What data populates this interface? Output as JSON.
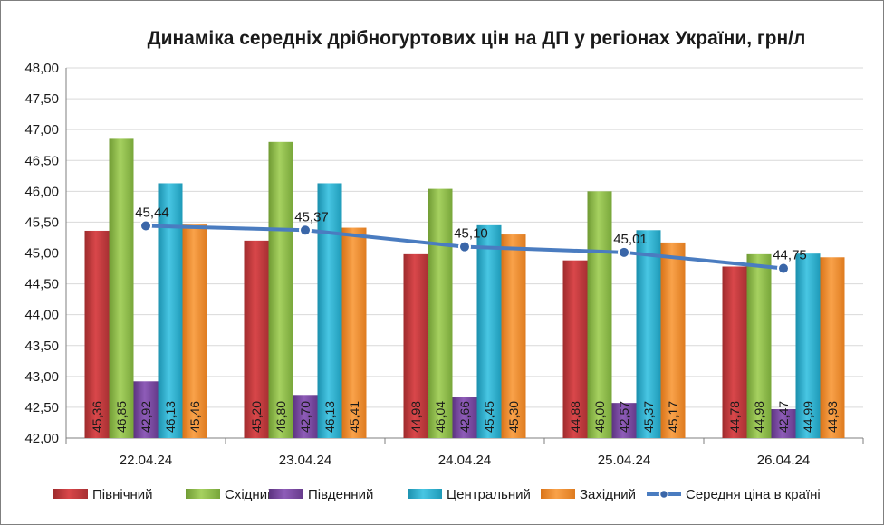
{
  "chart_data": {
    "type": "bar",
    "title": "Динаміка середніх дрібногуртових цін на ДП у регіонах України, грн/л",
    "categories": [
      "22.04.24",
      "23.04.24",
      "24.04.24",
      "25.04.24",
      "26.04.24"
    ],
    "ylim": [
      42.0,
      48.0
    ],
    "ytick_step": 0.5,
    "yticks": [
      "42,00",
      "42,50",
      "43,00",
      "43,50",
      "44,00",
      "44,50",
      "45,00",
      "45,50",
      "46,00",
      "46,50",
      "47,00",
      "47,50",
      "48,00"
    ],
    "grid": true,
    "legend_position": "bottom",
    "series": [
      {
        "name": "Північний",
        "color": "#c0393b",
        "values": [
          45.36,
          45.2,
          44.98,
          44.88,
          44.78
        ],
        "labels": [
          "45,36",
          "45,20",
          "44,98",
          "44,88",
          "44,78"
        ]
      },
      {
        "name": "Східний",
        "color": "#8fc046",
        "values": [
          46.85,
          46.8,
          46.04,
          46.0,
          44.98
        ],
        "labels": [
          "46,85",
          "46,80",
          "46,04",
          "46,00",
          "44,98"
        ]
      },
      {
        "name": "Південний",
        "color": "#7a4aa0",
        "values": [
          42.92,
          42.7,
          42.66,
          42.57,
          42.47
        ],
        "labels": [
          "42,92",
          "42,70",
          "42,66",
          "42,57",
          "42,47"
        ]
      },
      {
        "name": "Центральний",
        "color": "#2bb0cf",
        "values": [
          46.13,
          46.13,
          45.45,
          45.37,
          44.99
        ],
        "labels": [
          "46,13",
          "46,13",
          "45,45",
          "45,37",
          "44,99"
        ]
      },
      {
        "name": "Західний",
        "color": "#f3912f",
        "values": [
          45.46,
          45.41,
          45.3,
          45.17,
          44.93
        ],
        "labels": [
          "45,46",
          "45,41",
          "45,30",
          "45,17",
          "44,93"
        ]
      }
    ],
    "line_series": {
      "name": "Середня ціна в країні",
      "color": "#4a7cc0",
      "values": [
        45.44,
        45.37,
        45.1,
        45.01,
        44.75
      ],
      "labels": [
        "45,44",
        "45,37",
        "45,10",
        "45,01",
        "44,75"
      ]
    }
  }
}
